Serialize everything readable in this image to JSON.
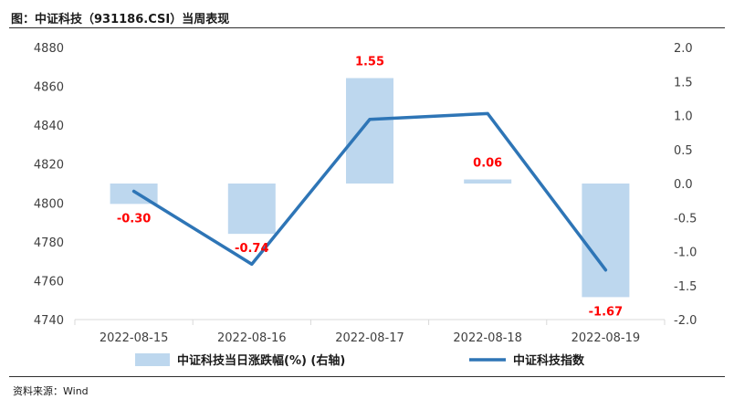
{
  "header": {
    "title": "图：中证科技（931186.CSI）当周表现"
  },
  "footer": {
    "source": "资料来源：Wind"
  },
  "colors": {
    "bar": "#bdd7ee",
    "line": "#2e75b6",
    "label": "#ff0000",
    "axis": "#404040",
    "grid": "#d9d9d9"
  },
  "chart_data": {
    "type": "bar+line",
    "categories": [
      "2022-08-15",
      "2022-08-16",
      "2022-08-17",
      "2022-08-18",
      "2022-08-19"
    ],
    "bar_series": {
      "name": "中证科技当日涨跌幅(%) (右轴)",
      "axis": "right",
      "values": [
        -0.3,
        -0.74,
        1.55,
        0.06,
        -1.67
      ],
      "labels": [
        "-0.30",
        "-0.74",
        "1.55",
        "0.06",
        "-1.67"
      ]
    },
    "line_series": {
      "name": "中证科技指数",
      "axis": "left",
      "values": [
        4806.0,
        4768.5,
        4843.0,
        4846.0,
        4765.5
      ]
    },
    "left_axis": {
      "ylim": [
        4740,
        4880
      ],
      "ticks": [
        "4740",
        "4760",
        "4780",
        "4800",
        "4820",
        "4840",
        "4860",
        "4880"
      ]
    },
    "right_axis": {
      "ylim": [
        -2.0,
        2.0
      ],
      "ticks": [
        "-2.0",
        "-1.5",
        "-1.0",
        "-0.5",
        "0.0",
        "0.5",
        "1.0",
        "1.5",
        "2.0"
      ]
    },
    "legend_position": "bottom"
  }
}
